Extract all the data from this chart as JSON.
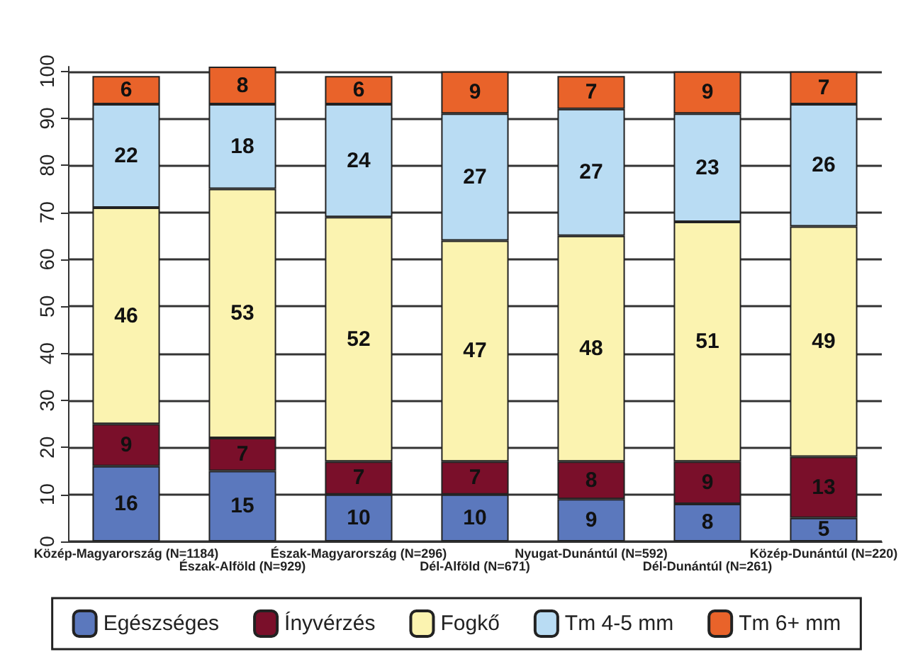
{
  "chart_data": {
    "type": "bar",
    "stacked": true,
    "data_labels": true,
    "grid": "y",
    "legend": "bottom",
    "categories": [
      "Közép-Magyarország (N=1184)",
      "Észak-Alföld (N=929)",
      "Észak-Magyarország (N=296)",
      "Dél-Alföld (N=671)",
      "Nyugat-Dunántúl (N=592)",
      "Dél-Dunántúl (N=261)",
      "Közép-Dunántúl (N=220)"
    ],
    "series": [
      {
        "name": "Egészséges",
        "color": "#5b78bd",
        "values": [
          16,
          15,
          10,
          10,
          9,
          8,
          5
        ]
      },
      {
        "name": "Ínyvérzés",
        "color": "#7a0f2a",
        "values": [
          9,
          7,
          7,
          7,
          8,
          9,
          13
        ]
      },
      {
        "name": "Fogkő",
        "color": "#fbf3b0",
        "values": [
          46,
          53,
          52,
          47,
          48,
          51,
          49
        ]
      },
      {
        "name": "Tm 4-5 mm",
        "color": "#b9dcf3",
        "values": [
          22,
          18,
          24,
          27,
          27,
          23,
          26
        ]
      },
      {
        "name": "Tm 6+ mm",
        "color": "#e9632a",
        "values": [
          6,
          8,
          6,
          9,
          7,
          9,
          7
        ]
      }
    ],
    "ylim": [
      0,
      101
    ],
    "yticks": [
      0,
      10,
      20,
      30,
      40,
      50,
      60,
      70,
      80,
      90,
      100
    ]
  }
}
